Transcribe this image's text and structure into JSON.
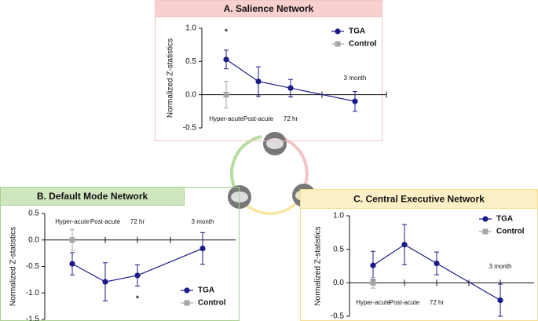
{
  "chart_data": [
    {
      "type": "line",
      "title": "A. Salience Network",
      "ylabel": "Normalized Z-statistics",
      "categories": [
        "Hyper-acute",
        "Post-acute",
        "72 hr",
        "3 month"
      ],
      "series": [
        {
          "name": "TGA",
          "color": "#1b1b8a",
          "values": [
            0.53,
            0.2,
            0.1,
            -0.1
          ],
          "errors": [
            0.14,
            0.22,
            0.13,
            0.15
          ]
        },
        {
          "name": "Control",
          "color": "#a6a6a6",
          "values": [
            0,
            null,
            null,
            null
          ],
          "errors": [
            0.2,
            null,
            null,
            null
          ]
        }
      ],
      "ylim": [
        -0.5,
        1.0
      ],
      "yticks": [
        {
          "value": 1,
          "label": "1.0"
        },
        0.5,
        {
          "value": 0,
          "label": "0.0"
        },
        -0.5
      ],
      "legend": "upper right",
      "annotations": [
        {
          "text": "*"
        }
      ]
    },
    {
      "type": "line",
      "title": "B. Default Mode Network",
      "ylabel": "Normalized Z-statistics",
      "categories": [
        "Hyper-acute",
        "Post-acute",
        "72 hr",
        "3 month"
      ],
      "series": [
        {
          "name": "TGA",
          "color": "#1b1b8a",
          "values": [
            -0.45,
            -0.79,
            -0.67,
            -0.16
          ],
          "errors": [
            0.21,
            0.36,
            0.2,
            0.3
          ]
        },
        {
          "name": "Control",
          "color": "#a6a6a6",
          "values": [
            0,
            null,
            null,
            null
          ],
          "errors": [
            0.2,
            null,
            null,
            null
          ]
        }
      ],
      "ylim": [
        -1.5,
        0.5
      ],
      "yticks": [
        0.5,
        {
          "value": 0,
          "label": "0.0"
        },
        -0.5,
        {
          "value": -1,
          "label": "-1.0"
        },
        -1.5
      ],
      "legend": "lower right",
      "annotations": [
        {
          "text": "*"
        }
      ]
    },
    {
      "type": "line",
      "title": "C. Central Executive Network",
      "ylabel": "Normalized Z-statistics",
      "categories": [
        "Hyper-acute",
        "Post-acute",
        "72 hr",
        "3 month"
      ],
      "series": [
        {
          "name": "TGA",
          "color": "#1b1b8a",
          "values": [
            0.26,
            0.57,
            0.29,
            -0.26
          ],
          "errors": [
            0.21,
            0.3,
            0.17,
            0.24
          ]
        },
        {
          "name": "Control",
          "color": "#a6a6a6",
          "values": [
            0,
            null,
            null,
            null
          ],
          "errors": [
            0.08,
            null,
            null,
            null
          ]
        }
      ],
      "ylim": [
        -0.5,
        1.0
      ],
      "yticks": [
        {
          "value": 1,
          "label": "1.0"
        },
        0.5,
        {
          "value": 0,
          "label": "0.0"
        },
        -0.5
      ],
      "legend": "upper right"
    }
  ]
}
